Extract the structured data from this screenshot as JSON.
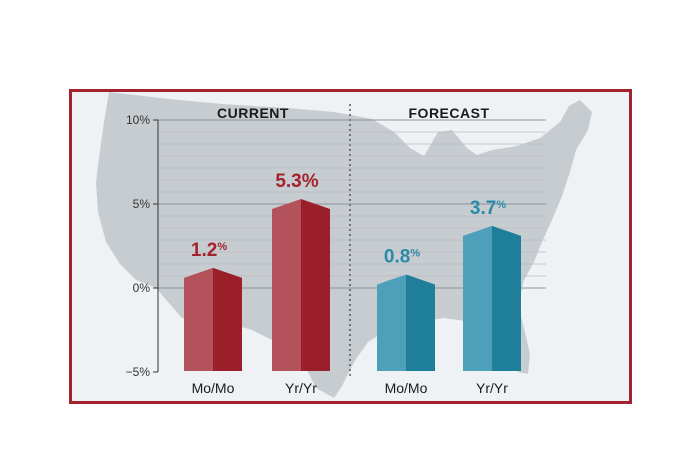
{
  "chart_data": {
    "type": "bar",
    "yticks": [
      "10%",
      "5%",
      "0%",
      "−5%"
    ],
    "ylim": [
      -5,
      10
    ],
    "grid": true,
    "groups": [
      {
        "title": "CURRENT",
        "color": "#a3222e",
        "categories": [
          "Mo/Mo",
          "Yr/Yr"
        ],
        "values": [
          1.2,
          5.3
        ],
        "labels": [
          {
            "num": "1.2",
            "unit": "%"
          },
          {
            "num": "5.3",
            "unit": "%"
          }
        ]
      },
      {
        "title": "FORECAST",
        "color": "#2a8ba8",
        "categories": [
          "Mo/Mo",
          "Yr/Yr"
        ],
        "values": [
          0.8,
          3.7
        ],
        "labels": [
          {
            "num": "0.8",
            "unit": "%"
          },
          {
            "num": "3.7",
            "unit": "%"
          }
        ]
      }
    ]
  },
  "style": {
    "frame_border_color": "#a3222e",
    "background_color": "#eef2f5",
    "map_color": "#c7ccd1",
    "current_light": "#b4525b",
    "current_dark": "#9a1f2a",
    "forecast_light": "#4d9fba",
    "forecast_dark": "#1f7e99"
  },
  "decor": {
    "background_map_icon": "usa-map-silhouette"
  }
}
